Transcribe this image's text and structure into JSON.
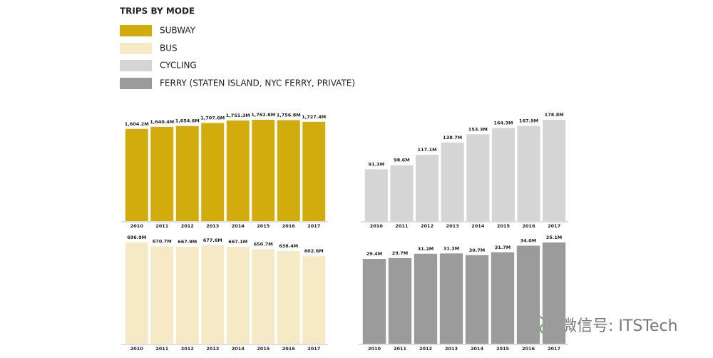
{
  "title": "TRIPS BY MODE",
  "watermark": "微信号: ITSTech",
  "chart_data": [
    {
      "type": "bar",
      "categories": [
        "2010",
        "2011",
        "2012",
        "2013",
        "2014",
        "2015",
        "2016",
        "2017"
      ],
      "series": [
        {
          "name": "SUBWAY",
          "color": "#d2ab0c",
          "values": [
            1604.2,
            1640.4,
            1654.6,
            1707.6,
            1751.3,
            1762.6,
            1756.8,
            1727.4
          ],
          "value_labels": [
            "1,604.2M",
            "1,640.4M",
            "1,654.6M",
            "1,707.6M",
            "1,751.3M",
            "1,762.6M",
            "1,756.8M",
            "1,727.4M"
          ]
        }
      ]
    },
    {
      "type": "bar",
      "categories": [
        "2010",
        "2011",
        "2012",
        "2013",
        "2014",
        "2015",
        "2016",
        "2017"
      ],
      "series": [
        {
          "name": "BUS",
          "color": "#f6e9c6",
          "values": [
            696.9,
            670.7,
            667.9,
            677.6,
            667.1,
            650.7,
            638.4,
            602.6
          ],
          "value_labels": [
            "696.9M",
            "670.7M",
            "667.9M",
            "677.6M",
            "667.1M",
            "650.7M",
            "638.4M",
            "602.6M"
          ]
        }
      ]
    },
    {
      "type": "bar",
      "categories": [
        "2010",
        "2011",
        "2012",
        "2013",
        "2014",
        "2015",
        "2016",
        "2017"
      ],
      "series": [
        {
          "name": "CYCLING",
          "color": "#d5d5d5",
          "values": [
            91.3,
            98.6,
            117.1,
            138.7,
            153.3,
            164.3,
            167.9,
            178.8
          ],
          "value_labels": [
            "91.3M",
            "98.6M",
            "117.1M",
            "138.7M",
            "153.3M",
            "164.3M",
            "167.9M",
            "178.8M"
          ]
        }
      ]
    },
    {
      "type": "bar",
      "categories": [
        "2010",
        "2011",
        "2012",
        "2013",
        "2014",
        "2015",
        "2016",
        "2017"
      ],
      "series": [
        {
          "name": "FERRY (STATEN ISLAND, NYC FERRY, PRIVATE)",
          "color": "#9b9b9b",
          "values": [
            29.4,
            29.7,
            31.2,
            31.3,
            30.7,
            31.7,
            34.0,
            35.1
          ],
          "value_labels": [
            "29.4M",
            "29.7M",
            "31.2M",
            "31.3M",
            "30.7M",
            "31.7M",
            "34.0M",
            "35.1M"
          ]
        }
      ]
    }
  ]
}
